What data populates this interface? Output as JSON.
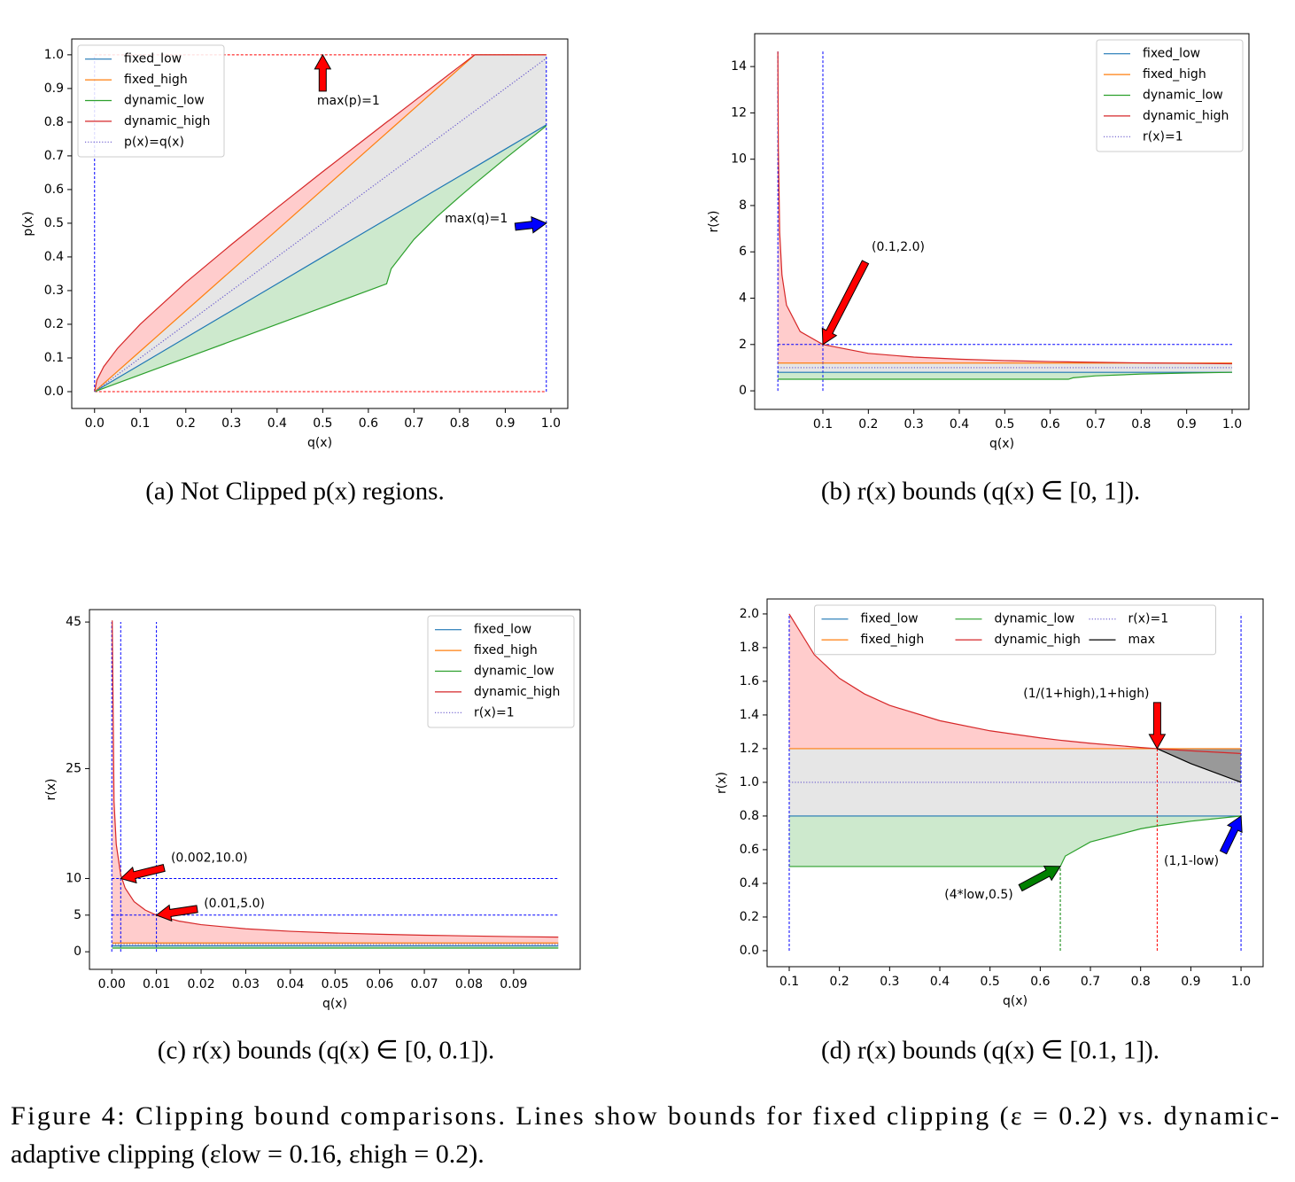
{
  "chart_data": [
    {
      "type": "line",
      "caption": "(a) Not Clipped p(x) regions.",
      "xlabel": "q(x)",
      "ylabel": "p(x)",
      "x": [
        0,
        0.005,
        0.02,
        0.05,
        0.1,
        0.2,
        0.3,
        0.4,
        0.5,
        0.6,
        0.64,
        0.65,
        0.7,
        0.75,
        0.8,
        0.833,
        0.9,
        0.95,
        0.99
      ],
      "series": [
        {
          "name": "fixed_low",
          "color": "#1f77b4",
          "values": [
            0,
            0.004,
            0.016,
            0.04,
            0.08,
            0.16,
            0.24,
            0.32,
            0.4,
            0.48,
            0.512,
            0.52,
            0.56,
            0.6,
            0.64,
            0.666,
            0.72,
            0.76,
            0.792
          ]
        },
        {
          "name": "fixed_high",
          "color": "#ff7f0e",
          "values": [
            0,
            0.006,
            0.024,
            0.06,
            0.12,
            0.24,
            0.36,
            0.48,
            0.6,
            0.72,
            0.768,
            0.78,
            0.84,
            0.9,
            0.96,
            1,
            1,
            1,
            1
          ]
        },
        {
          "name": "dynamic_low",
          "color": "#2ca02c",
          "values": [
            0,
            0.0025,
            0.01,
            0.025,
            0.05,
            0.1,
            0.15,
            0.2,
            0.25,
            0.3,
            0.32,
            0.365,
            0.452,
            0.519,
            0.579,
            0.617,
            0.692,
            0.746,
            0.789
          ]
        },
        {
          "name": "dynamic_high",
          "color": "#d62728",
          "values": [
            0,
            0.034,
            0.074,
            0.128,
            0.2,
            0.324,
            0.437,
            0.546,
            0.653,
            0.758,
            0.8,
            0.81,
            0.862,
            0.914,
            0.966,
            1,
            1,
            1,
            1
          ]
        },
        {
          "name": "p(x)=q(x)",
          "color": "#6a5acd",
          "dash": "dotted",
          "values": [
            0,
            0.005,
            0.02,
            0.05,
            0.1,
            0.2,
            0.3,
            0.4,
            0.5,
            0.6,
            0.64,
            0.65,
            0.7,
            0.75,
            0.8,
            0.833,
            0.9,
            0.95,
            0.99
          ]
        }
      ],
      "fills": [
        {
          "between": [
            3,
            1
          ],
          "color": "#ffcccc"
        },
        {
          "between": [
            1,
            0
          ],
          "color": "#e6e6e6"
        },
        {
          "between": [
            0,
            2
          ],
          "color": "#cde9cd"
        }
      ],
      "ref_lines": [
        {
          "orient": "h",
          "value": 1,
          "from": 0,
          "to": 0.99,
          "color": "#ff0000"
        },
        {
          "orient": "h",
          "value": 0,
          "from": 0,
          "to": 0.99,
          "color": "#ff0000"
        },
        {
          "orient": "v",
          "value": 0,
          "from": 0,
          "to": 1,
          "color": "#0000ff"
        },
        {
          "orient": "v",
          "value": 0.99,
          "from": 0,
          "to": 1,
          "color": "#0000ff"
        }
      ],
      "annotations": [
        {
          "text": "max(p)=1",
          "x": 0.5,
          "y": 1,
          "color": "#ff0000"
        },
        {
          "text": "max(q)=1",
          "x": 0.99,
          "y": 0.5,
          "color": "#0000ff"
        }
      ],
      "xlim": [
        -0.05,
        1.037
      ],
      "ylim": [
        -0.05,
        1.047
      ],
      "xticks": [
        {
          "value": 0,
          "label": "0.0"
        },
        0.1,
        0.2,
        0.3,
        0.4,
        0.5,
        0.6,
        0.7,
        0.8,
        0.9,
        {
          "value": 1,
          "label": "1.0"
        }
      ],
      "yticks": [
        {
          "value": 0,
          "label": "0.0"
        },
        0.1,
        0.2,
        0.3,
        0.4,
        0.5,
        0.6,
        0.7,
        0.8,
        0.9,
        {
          "value": 1,
          "label": "1.0"
        }
      ],
      "legend": "upper left",
      "legend_ncol": 1
    },
    {
      "type": "line",
      "caption": "(b) r(x) bounds (q(x) ∈ [0, 1]).",
      "xlabel": "q(x)",
      "ylabel": "r(x)",
      "x": [
        0.001,
        0.002,
        0.005,
        0.01,
        0.02,
        0.05,
        0.1,
        0.2,
        0.3,
        0.4,
        0.5,
        0.6,
        0.64,
        0.65,
        0.7,
        0.8,
        0.833,
        0.9,
        1.0
      ],
      "series": [
        {
          "name": "fixed_low",
          "color": "#1f77b4",
          "values": [
            0.8,
            0.8,
            0.8,
            0.8,
            0.8,
            0.8,
            0.8,
            0.8,
            0.8,
            0.8,
            0.8,
            0.8,
            0.8,
            0.8,
            0.8,
            0.8,
            0.8,
            0.8,
            0.8
          ]
        },
        {
          "name": "fixed_high",
          "color": "#ff7f0e",
          "values": [
            1.2,
            1.2,
            1.2,
            1.2,
            1.2,
            1.2,
            1.2,
            1.2,
            1.2,
            1.2,
            1.2,
            1.2,
            1.2,
            1.2,
            1.2,
            1.2,
            1.2,
            1.2,
            1.2
          ]
        },
        {
          "name": "dynamic_low",
          "color": "#2ca02c",
          "values": [
            0.5,
            0.5,
            0.5,
            0.5,
            0.5,
            0.5,
            0.5,
            0.5,
            0.5,
            0.5,
            0.5,
            0.5,
            0.5,
            0.562,
            0.646,
            0.724,
            0.741,
            0.769,
            0.8
          ]
        },
        {
          "name": "dynamic_high",
          "color": "#d62728",
          "values": [
            14.65,
            10.51,
            6.84,
            5,
            3.7,
            2.56,
            2,
            1.618,
            1.457,
            1.366,
            1.306,
            1.264,
            1.25,
            1.247,
            1.232,
            1.207,
            1.2,
            1.187,
            1.171
          ]
        },
        {
          "name": "r(x)=1",
          "color": "#6a5acd",
          "dash": "dotted",
          "values": [
            1,
            1,
            1,
            1,
            1,
            1,
            1,
            1,
            1,
            1,
            1,
            1,
            1,
            1,
            1,
            1,
            1,
            1,
            1
          ]
        }
      ],
      "fills": [
        {
          "between": [
            3,
            1
          ],
          "color": "#ffcccc"
        },
        {
          "between": [
            1,
            0
          ],
          "color": "#e6e6e6"
        },
        {
          "between": [
            0,
            2
          ],
          "color": "#cde9cd"
        }
      ],
      "ref_lines": [
        {
          "orient": "v",
          "value": 0.001,
          "from": 0,
          "to": 14.65,
          "color": "#0000ff"
        },
        {
          "orient": "v",
          "value": 0.1,
          "from": 0,
          "to": 14.65,
          "color": "#0000ff"
        },
        {
          "orient": "h",
          "value": 2,
          "from": 0.001,
          "to": 1,
          "color": "#0000ff"
        }
      ],
      "annotations": [
        {
          "text": "(0.1,2.0)",
          "x": 0.1,
          "y": 2,
          "color": "#ff0000"
        }
      ],
      "xlim": [
        -0.05,
        1.037
      ],
      "ylim": [
        -0.8,
        15.42
      ],
      "xticks": [
        0.1,
        0.2,
        0.3,
        0.4,
        0.5,
        0.6,
        0.7,
        0.8,
        0.9,
        {
          "value": 1,
          "label": "1.0"
        }
      ],
      "yticks": [
        0,
        2,
        4,
        6,
        8,
        10,
        12,
        14
      ],
      "legend": "upper right",
      "legend_ncol": 1
    },
    {
      "type": "line",
      "caption": "(c) r(x) bounds (q(x) ∈ [0, 0.1]).",
      "xlabel": "q(x)",
      "ylabel": "r(x)",
      "x": [
        0.0001,
        0.0005,
        0.001,
        0.002,
        0.003,
        0.005,
        0.0075,
        0.01,
        0.015,
        0.02,
        0.03,
        0.04,
        0.05,
        0.06,
        0.07,
        0.08,
        0.09,
        0.1
      ],
      "series": [
        {
          "name": "fixed_low",
          "color": "#1f77b4",
          "values": [
            0.8,
            0.8,
            0.8,
            0.8,
            0.8,
            0.8,
            0.8,
            0.8,
            0.8,
            0.8,
            0.8,
            0.8,
            0.8,
            0.8,
            0.8,
            0.8,
            0.8,
            0.8
          ]
        },
        {
          "name": "fixed_high",
          "color": "#ff7f0e",
          "values": [
            1.2,
            1.2,
            1.2,
            1.2,
            1.2,
            1.2,
            1.2,
            1.2,
            1.2,
            1.2,
            1.2,
            1.2,
            1.2,
            1.2,
            1.2,
            1.2,
            1.2,
            1.2
          ]
        },
        {
          "name": "dynamic_low",
          "color": "#2ca02c",
          "values": [
            0.5,
            0.5,
            0.5,
            0.5,
            0.5,
            0.5,
            0.5,
            0.5,
            0.5,
            0.5,
            0.5,
            0.5,
            0.5,
            0.5,
            0.5,
            0.5,
            0.5,
            0.5
          ]
        },
        {
          "name": "dynamic_high",
          "color": "#d62728",
          "values": [
            45.22,
            20.51,
            14.65,
            10.51,
            8.68,
            6.84,
            5.69,
            5,
            4.19,
            3.7,
            3.13,
            2.79,
            2.56,
            2.39,
            2.26,
            2.16,
            2.07,
            2
          ]
        },
        {
          "name": "r(x)=1",
          "color": "#6a5acd",
          "dash": "dotted",
          "values": [
            1,
            1,
            1,
            1,
            1,
            1,
            1,
            1,
            1,
            1,
            1,
            1,
            1,
            1,
            1,
            1,
            1,
            1
          ]
        }
      ],
      "fills": [
        {
          "between": [
            3,
            1
          ],
          "color": "#ffcccc"
        },
        {
          "between": [
            1,
            0
          ],
          "color": "#e6e6e6"
        },
        {
          "between": [
            0,
            2
          ],
          "color": "#cde9cd"
        }
      ],
      "ref_lines": [
        {
          "orient": "v",
          "value": 0,
          "from": 0,
          "to": 45,
          "color": "#0000ff"
        },
        {
          "orient": "v",
          "value": 0.002,
          "from": 0,
          "to": 45,
          "color": "#0000ff"
        },
        {
          "orient": "v",
          "value": 0.01,
          "from": 0,
          "to": 45,
          "color": "#0000ff"
        },
        {
          "orient": "h",
          "value": 10,
          "from": 0,
          "to": 0.1,
          "color": "#0000ff"
        },
        {
          "orient": "h",
          "value": 5,
          "from": 0,
          "to": 0.1,
          "color": "#0000ff"
        }
      ],
      "annotations": [
        {
          "text": "(0.002,10.0)",
          "x": 0.002,
          "y": 10,
          "color": "#ff0000"
        },
        {
          "text": "(0.01,5.0)",
          "x": 0.01,
          "y": 5,
          "color": "#ff0000"
        }
      ],
      "xlim": [
        -0.005,
        0.1049
      ],
      "ylim": [
        -2.4,
        46.7
      ],
      "xticks": [
        {
          "value": 0,
          "label": "0.00"
        },
        0.01,
        0.02,
        0.03,
        0.04,
        0.05,
        0.06,
        0.07,
        0.08,
        0.09
      ],
      "yticks": [
        0,
        5,
        10,
        25,
        45
      ],
      "legend": "upper right",
      "legend_ncol": 1
    },
    {
      "type": "line",
      "caption": "(d) r(x) bounds (q(x) ∈ [0.1, 1]).",
      "xlabel": "q(x)",
      "ylabel": "r(x)",
      "x": [
        0.1,
        0.15,
        0.2,
        0.25,
        0.3,
        0.4,
        0.5,
        0.6,
        0.64,
        0.65,
        0.7,
        0.8,
        0.833,
        0.9,
        1.0
      ],
      "series": [
        {
          "name": "fixed_low",
          "color": "#1f77b4",
          "values": [
            0.8,
            0.8,
            0.8,
            0.8,
            0.8,
            0.8,
            0.8,
            0.8,
            0.8,
            0.8,
            0.8,
            0.8,
            0.8,
            0.8,
            0.8
          ]
        },
        {
          "name": "fixed_high",
          "color": "#ff7f0e",
          "values": [
            1.2,
            1.2,
            1.2,
            1.2,
            1.2,
            1.2,
            1.2,
            1.2,
            1.2,
            1.2,
            1.2,
            1.2,
            1.2,
            1.2,
            1.2
          ]
        },
        {
          "name": "dynamic_low",
          "color": "#2ca02c",
          "values": [
            0.5,
            0.5,
            0.5,
            0.5,
            0.5,
            0.5,
            0.5,
            0.5,
            0.5,
            0.562,
            0.646,
            0.724,
            0.741,
            0.769,
            0.8
          ]
        },
        {
          "name": "dynamic_high",
          "color": "#d62728",
          "values": [
            2,
            1.758,
            1.618,
            1.525,
            1.457,
            1.366,
            1.306,
            1.264,
            1.25,
            1.247,
            1.232,
            1.207,
            1.2,
            1.187,
            1.171
          ]
        },
        {
          "name": "r(x)=1",
          "color": "#6a5acd",
          "dash": "dotted",
          "values": [
            1,
            1,
            1,
            1,
            1,
            1,
            1,
            1,
            1,
            1,
            1,
            1,
            1,
            1,
            1
          ]
        },
        {
          "name": "max",
          "color": "#000000",
          "values": [
            null,
            null,
            null,
            null,
            null,
            null,
            null,
            null,
            null,
            null,
            null,
            null,
            1.2,
            1.111,
            1
          ]
        }
      ],
      "fills": [
        {
          "between": [
            3,
            1
          ],
          "color": "#ffcccc"
        },
        {
          "between": [
            1,
            0
          ],
          "color": "#e6e6e6"
        },
        {
          "between": [
            0,
            2
          ],
          "color": "#cde9cd"
        },
        {
          "between": [
            1,
            5
          ],
          "color": "#999999"
        }
      ],
      "ref_lines": [
        {
          "orient": "v",
          "value": 0.1,
          "from": 0,
          "to": 2,
          "color": "#0000ff"
        },
        {
          "orient": "v",
          "value": 0.64,
          "from": 0,
          "to": 0.5,
          "color": "#008000"
        },
        {
          "orient": "v",
          "value": 0.833,
          "from": 0,
          "to": 1.2,
          "color": "#ff0000"
        },
        {
          "orient": "v",
          "value": 1.0,
          "from": 0,
          "to": 2,
          "color": "#0000ff"
        }
      ],
      "annotations": [
        {
          "text": "(1/(1+high),1+high)",
          "x": 0.833,
          "y": 1.2,
          "color": "#ff0000"
        },
        {
          "text": "(4*low,0.5)",
          "x": 0.64,
          "y": 0.5,
          "color": "#008000"
        },
        {
          "text": "(1,1-low)",
          "x": 1.0,
          "y": 0.8,
          "color": "#0000ff"
        }
      ],
      "xlim": [
        0.0559,
        1.044
      ],
      "ylim": [
        -0.095,
        2.089
      ],
      "xticks": [
        0.1,
        0.2,
        0.3,
        0.4,
        0.5,
        0.6,
        0.7,
        0.8,
        0.9,
        {
          "value": 1,
          "label": "1.0"
        }
      ],
      "yticks": [
        {
          "value": 0,
          "label": "0.0"
        },
        0.2,
        0.4,
        0.6,
        0.8,
        {
          "value": 1,
          "label": "1.0"
        },
        1.2,
        1.4,
        1.6,
        1.8,
        {
          "value": 2,
          "label": "2.0"
        }
      ],
      "legend": "upper center",
      "legend_ncol": 3
    }
  ],
  "caption": [
    "Figure 4: Clipping bound comparisons. Lines show bounds for fixed clipping (ε = 0.2) vs. dynamic-",
    "adaptive clipping (εlow = 0.16, εhigh = 0.2)."
  ]
}
